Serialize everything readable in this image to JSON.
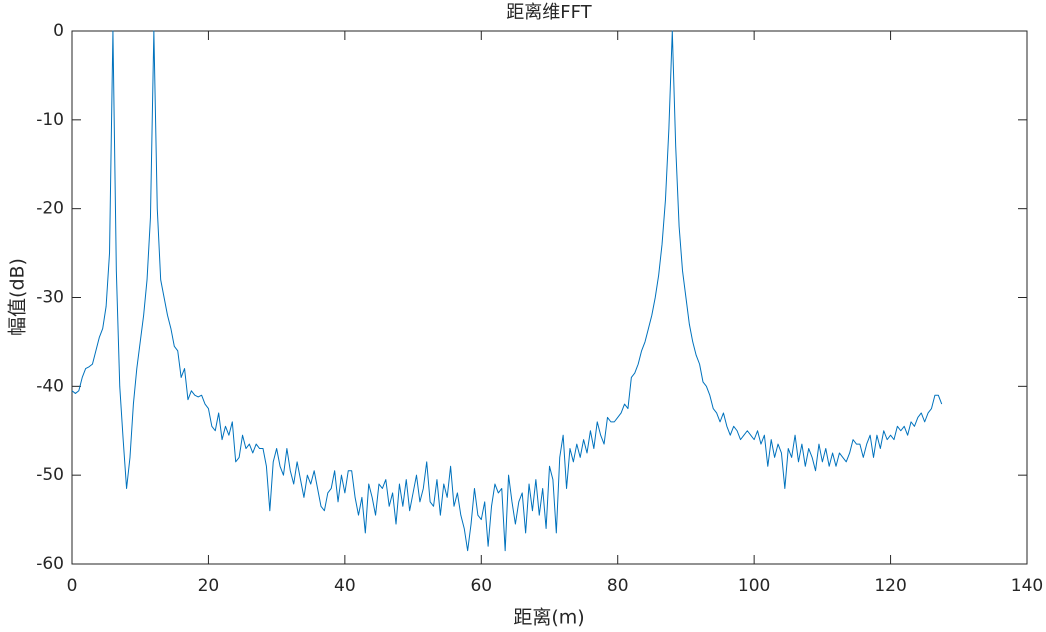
{
  "chart_data": {
    "type": "line",
    "title": "距离维FFT",
    "x_label": "距离(m)",
    "y_label": "幅值(dB)",
    "color": "#0072bd",
    "xlim": [
      0,
      140
    ],
    "xticks": [
      0,
      20,
      40,
      60,
      80,
      100,
      120,
      140
    ],
    "ylim": [
      -60,
      0
    ],
    "yticks": [
      -60,
      -50,
      -40,
      -30,
      -20,
      -10,
      0
    ],
    "x": [
      0,
      0.5,
      1,
      1.5,
      2,
      2.5,
      3,
      3.5,
      4,
      4.5,
      5,
      5.5,
      6,
      6.5,
      7,
      7.5,
      8,
      8.5,
      9,
      9.5,
      10,
      10.5,
      11,
      11.5,
      12,
      12.5,
      13,
      13.5,
      14,
      14.5,
      15,
      15.5,
      16,
      16.5,
      17,
      17.5,
      18,
      18.5,
      19,
      19.5,
      20,
      20.5,
      21,
      21.5,
      22,
      22.5,
      23,
      23.5,
      24,
      24.5,
      25,
      25.5,
      26,
      26.5,
      27,
      27.5,
      28,
      28.5,
      29,
      29.5,
      30,
      30.5,
      31,
      31.5,
      32,
      32.5,
      33,
      33.5,
      34,
      34.5,
      35,
      35.5,
      36,
      36.5,
      37,
      37.5,
      38,
      38.5,
      39,
      39.5,
      40,
      40.5,
      41,
      41.5,
      42,
      42.5,
      43,
      43.5,
      44,
      44.5,
      45,
      45.5,
      46,
      46.5,
      47,
      47.5,
      48,
      48.5,
      49,
      49.5,
      50,
      50.5,
      51,
      51.5,
      52,
      52.5,
      53,
      53.5,
      54,
      54.5,
      55,
      55.5,
      56,
      56.5,
      57,
      57.5,
      58,
      58.5,
      59,
      59.5,
      60,
      60.5,
      61,
      61.5,
      62,
      62.5,
      63,
      63.5,
      64,
      64.5,
      65,
      65.5,
      66,
      66.5,
      67,
      67.5,
      68,
      68.5,
      69,
      69.5,
      70,
      70.5,
      71,
      71.5,
      72,
      72.5,
      73,
      73.5,
      74,
      74.5,
      75,
      75.5,
      76,
      76.5,
      77,
      77.5,
      78,
      78.5,
      79,
      79.5,
      80,
      80.5,
      81,
      81.5,
      82,
      82.5,
      83,
      83.5,
      84,
      84.5,
      85,
      85.5,
      86,
      86.5,
      87,
      87.5,
      88,
      88.5,
      89,
      89.5,
      90,
      90.5,
      91,
      91.5,
      92,
      92.5,
      93,
      93.5,
      94,
      94.5,
      95,
      95.5,
      96,
      96.5,
      97,
      97.5,
      98,
      98.5,
      99,
      99.5,
      100,
      100.5,
      101,
      101.5,
      102,
      102.5,
      103,
      103.5,
      104,
      104.5,
      105,
      105.5,
      106,
      106.5,
      107,
      107.5,
      108,
      108.5,
      109,
      109.5,
      110,
      110.5,
      111,
      111.5,
      112,
      112.5,
      113,
      113.5,
      114,
      114.5,
      115,
      115.5,
      116,
      116.5,
      117,
      117.5,
      118,
      118.5,
      119,
      119.5,
      120,
      120.5,
      121,
      121.5,
      122,
      122.5,
      123,
      123.5,
      124,
      124.5,
      125,
      125.5,
      126,
      126.5,
      127,
      127.5
    ],
    "values": [
      -40.5,
      -40.8,
      -40.5,
      -39,
      -38,
      -37.8,
      -37.5,
      -36,
      -34.5,
      -33.5,
      -31,
      -25,
      0,
      -27,
      -40,
      -46,
      -51.5,
      -48,
      -42,
      -38,
      -35,
      -32,
      -28,
      -21,
      0,
      -20,
      -28,
      -30,
      -32,
      -33.5,
      -35.5,
      -36,
      -39,
      -38,
      -41.5,
      -40.5,
      -41,
      -41.2,
      -41,
      -42,
      -42.5,
      -44.5,
      -45,
      -43,
      -46,
      -44.5,
      -45.5,
      -44,
      -48.5,
      -48,
      -45.5,
      -47,
      -46.5,
      -47.5,
      -46.5,
      -47,
      -47,
      -49,
      -54,
      -48.5,
      -47,
      -49,
      -50,
      -47,
      -49.5,
      -51,
      -48.5,
      -50.5,
      -52.5,
      -50,
      -51,
      -49.5,
      -51.5,
      -53.5,
      -54,
      -52,
      -51.5,
      -49.5,
      -53,
      -50,
      -52,
      -49.5,
      -49.5,
      -52.5,
      -54.5,
      -52.5,
      -56.5,
      -51,
      -52.5,
      -54.5,
      -51,
      -51.5,
      -50.5,
      -53.5,
      -52,
      -55.5,
      -51,
      -53.5,
      -50.5,
      -54,
      -52,
      -50,
      -53,
      -51.5,
      -48.5,
      -53,
      -53.5,
      -50.5,
      -54.5,
      -51,
      -52.5,
      -49,
      -53.5,
      -52,
      -54.5,
      -56,
      -58.5,
      -55.5,
      -51.5,
      -54.5,
      -55,
      -53,
      -58,
      -53.5,
      -51,
      -52,
      -51.5,
      -58.5,
      -50,
      -53,
      -55.5,
      -53,
      -52,
      -56.5,
      -51,
      -54,
      -50.5,
      -54.5,
      -51.5,
      -56,
      -49,
      -50.5,
      -56.5,
      -48,
      -45.5,
      -51.5,
      -47,
      -48.5,
      -46.5,
      -48,
      -46,
      -47.5,
      -45,
      -47,
      -44,
      -45.5,
      -46.5,
      -43.5,
      -44,
      -44,
      -43.5,
      -43,
      -42,
      -42.5,
      -39,
      -38.5,
      -37.5,
      -36,
      -35,
      -33.5,
      -32,
      -30,
      -27.5,
      -24,
      -19,
      -11,
      0,
      -13,
      -22,
      -27,
      -30,
      -33,
      -35,
      -36.5,
      -37.5,
      -39.5,
      -40,
      -41,
      -42.5,
      -43,
      -44,
      -43,
      -44.5,
      -45.5,
      -44.5,
      -45,
      -46,
      -45.5,
      -45,
      -45.5,
      -46,
      -45,
      -46.5,
      -45.5,
      -49,
      -46,
      -48,
      -46.5,
      -47.5,
      -51.5,
      -47,
      -48,
      -45.5,
      -48.5,
      -46.5,
      -49,
      -47,
      -48,
      -49.5,
      -46.5,
      -48.5,
      -47,
      -49,
      -47.5,
      -49,
      -47.5,
      -48,
      -48.5,
      -47.5,
      -46,
      -46.5,
      -46.5,
      -48,
      -46.5,
      -45.5,
      -48,
      -45.5,
      -47,
      -45,
      -46,
      -45.5,
      -46,
      -44.5,
      -45,
      -44.5,
      -45.5,
      -44,
      -44.5,
      -43.5,
      -43,
      -44,
      -43,
      -42.5,
      -41,
      -41,
      -42
    ]
  }
}
